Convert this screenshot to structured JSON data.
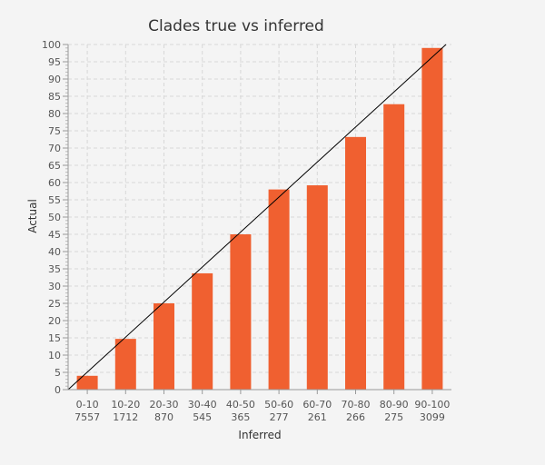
{
  "chart_data": {
    "type": "bar",
    "title": "Clades true vs inferred",
    "xlabel": "Inferred",
    "ylabel": "Actual",
    "ylim": [
      0,
      100
    ],
    "yticks": [
      0,
      5,
      10,
      15,
      20,
      25,
      30,
      35,
      40,
      45,
      50,
      55,
      60,
      65,
      70,
      75,
      80,
      85,
      90,
      95,
      100
    ],
    "categories": [
      "0-10",
      "10-20",
      "20-30",
      "30-40",
      "40-50",
      "50-60",
      "60-70",
      "70-80",
      "80-90",
      "90-100"
    ],
    "counts": [
      "7557",
      "1712",
      "870",
      "545",
      "365",
      "277",
      "261",
      "266",
      "275",
      "3099"
    ],
    "values": [
      4.0,
      14.7,
      25.0,
      33.7,
      45.0,
      58.0,
      59.2,
      73.2,
      82.7,
      99.0
    ],
    "reference_line": "y = x",
    "grid": true,
    "bar_color": "#f06030"
  }
}
